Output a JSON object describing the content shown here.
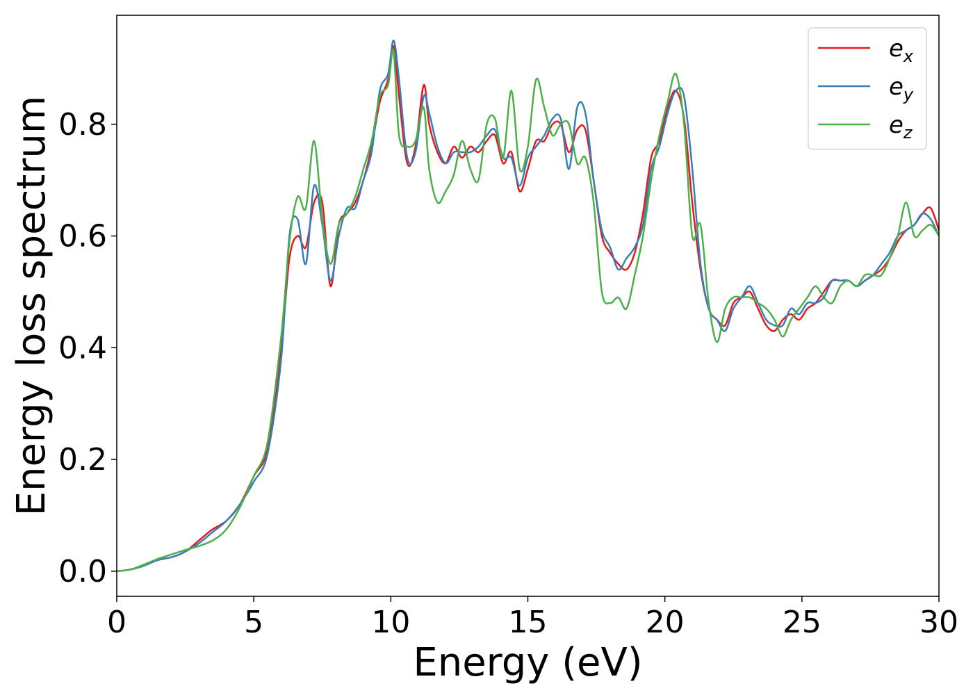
{
  "chart_data": {
    "type": "line",
    "xlabel": "Energy (eV)",
    "ylabel": "Energy loss spectrum",
    "xlim": [
      0,
      30
    ],
    "ylim": [
      -0.045,
      0.995
    ],
    "xticks": [
      0,
      5,
      10,
      15,
      20,
      25,
      30
    ],
    "xtick_labels": [
      "0",
      "5",
      "10",
      "15",
      "20",
      "25",
      "30"
    ],
    "yticks": [
      0.0,
      0.2,
      0.4,
      0.6,
      0.8
    ],
    "ytick_labels": [
      "0.0",
      "0.2",
      "0.4",
      "0.6",
      "0.8"
    ],
    "grid": false,
    "legend_position": "top-right",
    "series": [
      {
        "name": "e_x",
        "label_base": "e",
        "label_sub": "x",
        "color": "#e41a1c",
        "x": [
          0,
          0.5,
          1.0,
          1.5,
          2.0,
          2.5,
          3.0,
          3.5,
          4.0,
          4.5,
          5.0,
          5.5,
          6.0,
          6.3,
          6.6,
          6.9,
          7.2,
          7.5,
          7.8,
          8.1,
          8.4,
          8.7,
          9.0,
          9.3,
          9.6,
          9.9,
          10.1,
          10.3,
          10.6,
          10.9,
          11.2,
          11.4,
          11.7,
          12.0,
          12.3,
          12.6,
          12.9,
          13.2,
          13.5,
          13.8,
          14.1,
          14.4,
          14.7,
          15.0,
          15.3,
          15.6,
          15.9,
          16.2,
          16.5,
          16.8,
          17.1,
          17.4,
          17.7,
          18.0,
          18.3,
          18.6,
          18.9,
          19.2,
          19.5,
          19.8,
          20.1,
          20.4,
          20.7,
          21.0,
          21.3,
          21.6,
          21.9,
          22.2,
          22.5,
          22.8,
          23.1,
          23.4,
          23.7,
          24.0,
          24.3,
          24.6,
          24.9,
          25.2,
          25.5,
          25.8,
          26.1,
          26.4,
          26.7,
          27.0,
          27.3,
          27.6,
          27.9,
          28.2,
          28.5,
          28.8,
          29.1,
          29.4,
          29.7,
          30.0
        ],
        "y": [
          0,
          0.003,
          0.01,
          0.02,
          0.025,
          0.035,
          0.055,
          0.075,
          0.09,
          0.12,
          0.17,
          0.22,
          0.4,
          0.56,
          0.6,
          0.58,
          0.66,
          0.66,
          0.51,
          0.62,
          0.64,
          0.66,
          0.7,
          0.76,
          0.84,
          0.88,
          0.94,
          0.85,
          0.73,
          0.76,
          0.87,
          0.8,
          0.75,
          0.73,
          0.76,
          0.74,
          0.76,
          0.75,
          0.77,
          0.78,
          0.73,
          0.75,
          0.68,
          0.72,
          0.77,
          0.77,
          0.8,
          0.8,
          0.75,
          0.79,
          0.79,
          0.7,
          0.6,
          0.57,
          0.55,
          0.54,
          0.57,
          0.64,
          0.74,
          0.77,
          0.83,
          0.86,
          0.81,
          0.66,
          0.54,
          0.47,
          0.45,
          0.44,
          0.48,
          0.49,
          0.5,
          0.47,
          0.44,
          0.43,
          0.45,
          0.46,
          0.45,
          0.47,
          0.48,
          0.5,
          0.52,
          0.52,
          0.52,
          0.51,
          0.52,
          0.53,
          0.54,
          0.56,
          0.59,
          0.61,
          0.62,
          0.64,
          0.65,
          0.61
        ]
      },
      {
        "name": "e_y",
        "label_base": "e",
        "label_sub": "y",
        "color": "#377eb8",
        "x": [
          0,
          0.5,
          1.0,
          1.5,
          2.0,
          2.5,
          3.0,
          3.5,
          4.0,
          4.5,
          5.0,
          5.5,
          6.0,
          6.3,
          6.6,
          6.9,
          7.2,
          7.5,
          7.8,
          8.1,
          8.4,
          8.7,
          9.0,
          9.3,
          9.6,
          9.9,
          10.1,
          10.3,
          10.6,
          10.9,
          11.2,
          11.4,
          11.7,
          12.0,
          12.3,
          12.6,
          12.9,
          13.2,
          13.5,
          13.8,
          14.1,
          14.4,
          14.7,
          15.0,
          15.3,
          15.6,
          15.9,
          16.2,
          16.5,
          16.8,
          17.1,
          17.4,
          17.7,
          18.0,
          18.3,
          18.6,
          18.9,
          19.2,
          19.5,
          19.8,
          20.1,
          20.4,
          20.7,
          21.0,
          21.3,
          21.6,
          21.9,
          22.2,
          22.5,
          22.8,
          23.1,
          23.4,
          23.7,
          24.0,
          24.3,
          24.6,
          24.9,
          25.2,
          25.5,
          25.8,
          26.1,
          26.4,
          26.7,
          27.0,
          27.3,
          27.6,
          27.9,
          28.2,
          28.5,
          28.8,
          29.1,
          29.4,
          29.7,
          30.0
        ],
        "y": [
          0,
          0.003,
          0.01,
          0.02,
          0.025,
          0.035,
          0.05,
          0.07,
          0.09,
          0.12,
          0.16,
          0.21,
          0.38,
          0.6,
          0.63,
          0.55,
          0.69,
          0.62,
          0.52,
          0.6,
          0.65,
          0.65,
          0.7,
          0.75,
          0.86,
          0.89,
          0.95,
          0.88,
          0.74,
          0.75,
          0.85,
          0.82,
          0.76,
          0.73,
          0.75,
          0.75,
          0.75,
          0.76,
          0.78,
          0.79,
          0.74,
          0.74,
          0.69,
          0.74,
          0.76,
          0.78,
          0.81,
          0.81,
          0.72,
          0.83,
          0.82,
          0.7,
          0.61,
          0.58,
          0.54,
          0.56,
          0.58,
          0.62,
          0.72,
          0.76,
          0.82,
          0.86,
          0.85,
          0.72,
          0.55,
          0.47,
          0.45,
          0.43,
          0.47,
          0.49,
          0.51,
          0.48,
          0.45,
          0.44,
          0.44,
          0.47,
          0.46,
          0.48,
          0.48,
          0.49,
          0.52,
          0.52,
          0.52,
          0.51,
          0.52,
          0.53,
          0.55,
          0.57,
          0.6,
          0.61,
          0.62,
          0.64,
          0.63,
          0.6
        ]
      },
      {
        "name": "e_z",
        "label_base": "e",
        "label_sub": "z",
        "color": "#4daf4a",
        "x": [
          0,
          0.5,
          1.0,
          1.5,
          2.0,
          2.5,
          3.0,
          3.5,
          4.0,
          4.5,
          5.0,
          5.5,
          6.0,
          6.3,
          6.6,
          6.9,
          7.2,
          7.5,
          7.8,
          8.1,
          8.4,
          8.7,
          9.0,
          9.3,
          9.6,
          9.9,
          10.1,
          10.3,
          10.6,
          10.9,
          11.2,
          11.4,
          11.7,
          12.0,
          12.3,
          12.6,
          12.9,
          13.2,
          13.5,
          13.8,
          14.1,
          14.4,
          14.7,
          15.0,
          15.3,
          15.6,
          15.9,
          16.2,
          16.5,
          16.8,
          17.1,
          17.4,
          17.7,
          18.0,
          18.3,
          18.6,
          18.9,
          19.2,
          19.5,
          19.8,
          20.1,
          20.4,
          20.7,
          21.0,
          21.3,
          21.6,
          21.9,
          22.2,
          22.5,
          22.8,
          23.1,
          23.4,
          23.7,
          24.0,
          24.3,
          24.6,
          24.9,
          25.2,
          25.5,
          25.8,
          26.1,
          26.4,
          26.7,
          27.0,
          27.3,
          27.6,
          27.9,
          28.2,
          28.5,
          28.8,
          29.1,
          29.4,
          29.7,
          30.0
        ],
        "y": [
          0,
          0.003,
          0.012,
          0.022,
          0.03,
          0.038,
          0.045,
          0.055,
          0.075,
          0.115,
          0.17,
          0.23,
          0.42,
          0.59,
          0.67,
          0.65,
          0.77,
          0.63,
          0.55,
          0.62,
          0.64,
          0.67,
          0.72,
          0.77,
          0.85,
          0.87,
          0.93,
          0.78,
          0.76,
          0.77,
          0.83,
          0.72,
          0.66,
          0.68,
          0.71,
          0.77,
          0.72,
          0.7,
          0.8,
          0.81,
          0.74,
          0.86,
          0.72,
          0.76,
          0.88,
          0.83,
          0.78,
          0.8,
          0.8,
          0.73,
          0.74,
          0.66,
          0.5,
          0.48,
          0.49,
          0.47,
          0.53,
          0.6,
          0.7,
          0.78,
          0.84,
          0.89,
          0.8,
          0.6,
          0.62,
          0.48,
          0.41,
          0.47,
          0.49,
          0.49,
          0.49,
          0.48,
          0.47,
          0.45,
          0.42,
          0.45,
          0.47,
          0.49,
          0.51,
          0.49,
          0.48,
          0.51,
          0.52,
          0.51,
          0.53,
          0.53,
          0.53,
          0.56,
          0.6,
          0.66,
          0.6,
          0.61,
          0.62,
          0.6
        ]
      }
    ]
  }
}
